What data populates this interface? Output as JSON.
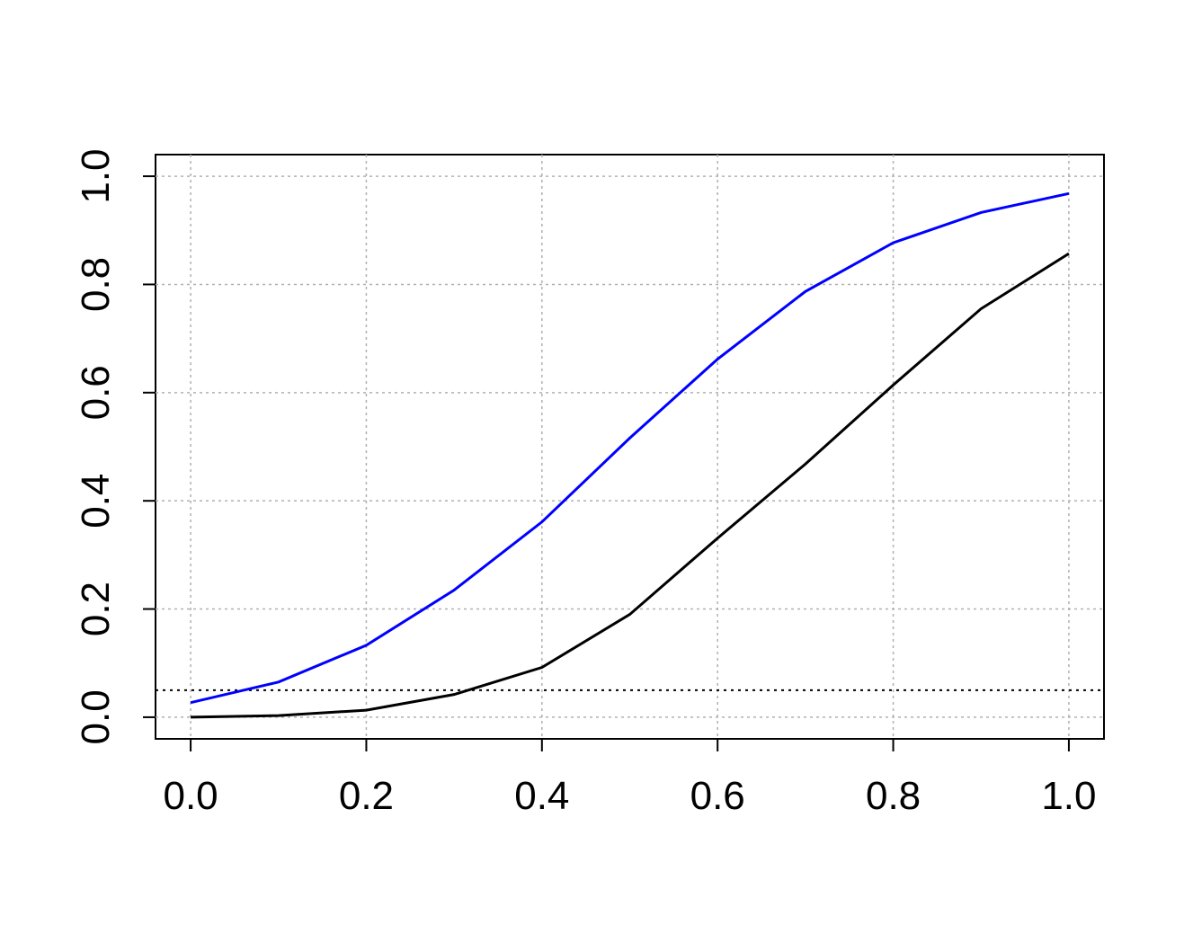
{
  "chart_data": {
    "type": "line",
    "x": [
      0,
      0.1,
      0.2,
      0.3,
      0.4,
      0.5,
      0.6,
      0.7,
      0.8,
      0.9,
      1
    ],
    "series": [
      {
        "color": "#0000ff",
        "values": [
          0.027,
          0.065,
          0.133,
          0.235,
          0.361,
          0.516,
          0.662,
          0.787,
          0.877,
          0.933,
          0.968
        ]
      },
      {
        "color": "#000000",
        "values": [
          0,
          0.003,
          0.013,
          0.042,
          0.092,
          0.19,
          0.331,
          0.468,
          0.614,
          0.755,
          0.857
        ]
      }
    ],
    "reference_line": 0.05,
    "xlim": [
      -0.04,
      1.04
    ],
    "ylim": [
      -0.04,
      1.04
    ],
    "xticks": [
      {
        "value": 0,
        "label": "0.0"
      },
      0.2,
      0.4,
      0.6,
      0.8,
      {
        "value": 1,
        "label": "1.0"
      }
    ],
    "yticks": [
      {
        "value": 0,
        "label": "0.0"
      },
      0.2,
      0.4,
      0.6,
      0.8,
      {
        "value": 1,
        "label": "1.0"
      }
    ],
    "grid": true
  }
}
